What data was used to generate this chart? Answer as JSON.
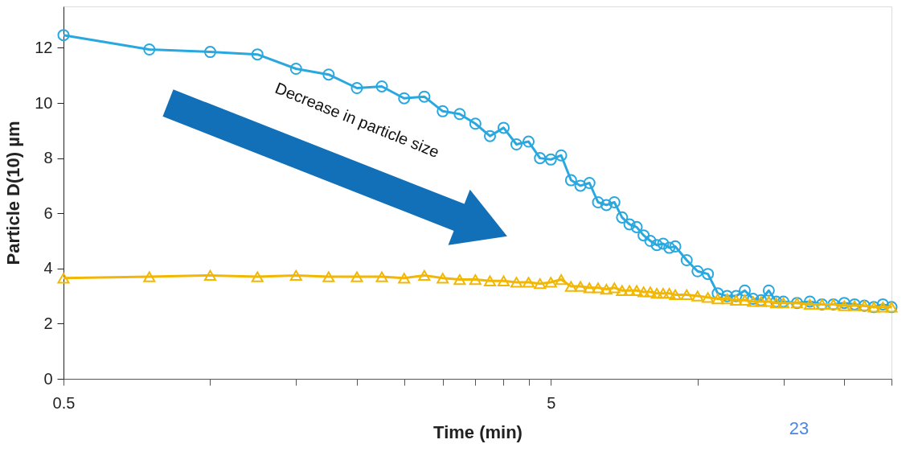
{
  "chart_data": {
    "type": "line",
    "xlabel": "Time (min)",
    "ylabel": "Particle D(10) µm",
    "log": "x",
    "grid": false,
    "xlim": [
      0.5,
      25
    ],
    "xticks": [
      0.5,
      {
        "value": 1,
        "label": null
      },
      {
        "value": 1.5,
        "label": null
      },
      {
        "value": 2,
        "label": null
      },
      {
        "value": 2.5,
        "label": null
      },
      {
        "value": 3,
        "label": null
      },
      {
        "value": 3.5,
        "label": null
      },
      {
        "value": 4,
        "label": null
      },
      {
        "value": 4.5,
        "label": null
      },
      5,
      {
        "value": 10,
        "label": null
      },
      {
        "value": 15,
        "label": null
      },
      {
        "value": 20,
        "label": null
      },
      {
        "value": 25,
        "label": null
      }
    ],
    "ylim": [
      0,
      13.5
    ],
    "yticks": [
      0,
      2,
      4,
      6,
      8,
      10,
      12
    ],
    "x": [
      0.5,
      0.75,
      1.0,
      1.25,
      1.5,
      1.75,
      2.0,
      2.25,
      2.5,
      2.75,
      3.0,
      3.25,
      3.5,
      3.75,
      4.0,
      4.25,
      4.5,
      4.75,
      5.0,
      5.25,
      5.5,
      5.75,
      6.0,
      6.25,
      6.5,
      6.75,
      7.0,
      7.25,
      7.5,
      7.75,
      8.0,
      8.25,
      8.5,
      8.75,
      9.0,
      9.5,
      10,
      10.5,
      11,
      11.5,
      12,
      12.5,
      13,
      13.5,
      14,
      14.5,
      15,
      16,
      17,
      18,
      19,
      20,
      21,
      22,
      23,
      24,
      25
    ],
    "series": [
      {
        "color": "#29a8e0",
        "marker": "circle",
        "values": [
          12.46,
          11.94,
          11.85,
          11.76,
          11.24,
          11.03,
          10.54,
          10.6,
          10.17,
          10.23,
          9.7,
          9.6,
          9.25,
          8.8,
          9.1,
          8.5,
          8.6,
          8.0,
          7.95,
          8.1,
          7.2,
          7.0,
          7.1,
          6.4,
          6.3,
          6.4,
          5.85,
          5.6,
          5.5,
          5.2,
          5.0,
          4.85,
          4.9,
          4.75,
          4.8,
          4.3,
          3.9,
          3.8,
          3.1,
          3.0,
          3.0,
          3.2,
          2.9,
          2.85,
          3.2,
          2.8,
          2.8,
          2.75,
          2.8,
          2.7,
          2.7,
          2.75,
          2.7,
          2.65,
          2.6,
          2.7,
          2.6
        ]
      },
      {
        "color": "#f2b705",
        "marker": "triangle",
        "values": [
          3.65,
          3.7,
          3.75,
          3.7,
          3.75,
          3.7,
          3.7,
          3.7,
          3.65,
          3.75,
          3.65,
          3.6,
          3.6,
          3.55,
          3.55,
          3.5,
          3.5,
          3.45,
          3.5,
          3.6,
          3.35,
          3.35,
          3.3,
          3.3,
          3.25,
          3.3,
          3.2,
          3.2,
          3.2,
          3.15,
          3.15,
          3.1,
          3.1,
          3.1,
          3.05,
          3.05,
          3.0,
          2.95,
          2.9,
          2.9,
          2.85,
          2.85,
          2.8,
          2.8,
          2.8,
          2.75,
          2.75,
          2.75,
          2.7,
          2.7,
          2.7,
          2.65,
          2.65,
          2.65,
          2.6,
          2.6,
          2.6
        ]
      }
    ],
    "annotations": [
      "Decrease in particle size",
      "23"
    ]
  }
}
